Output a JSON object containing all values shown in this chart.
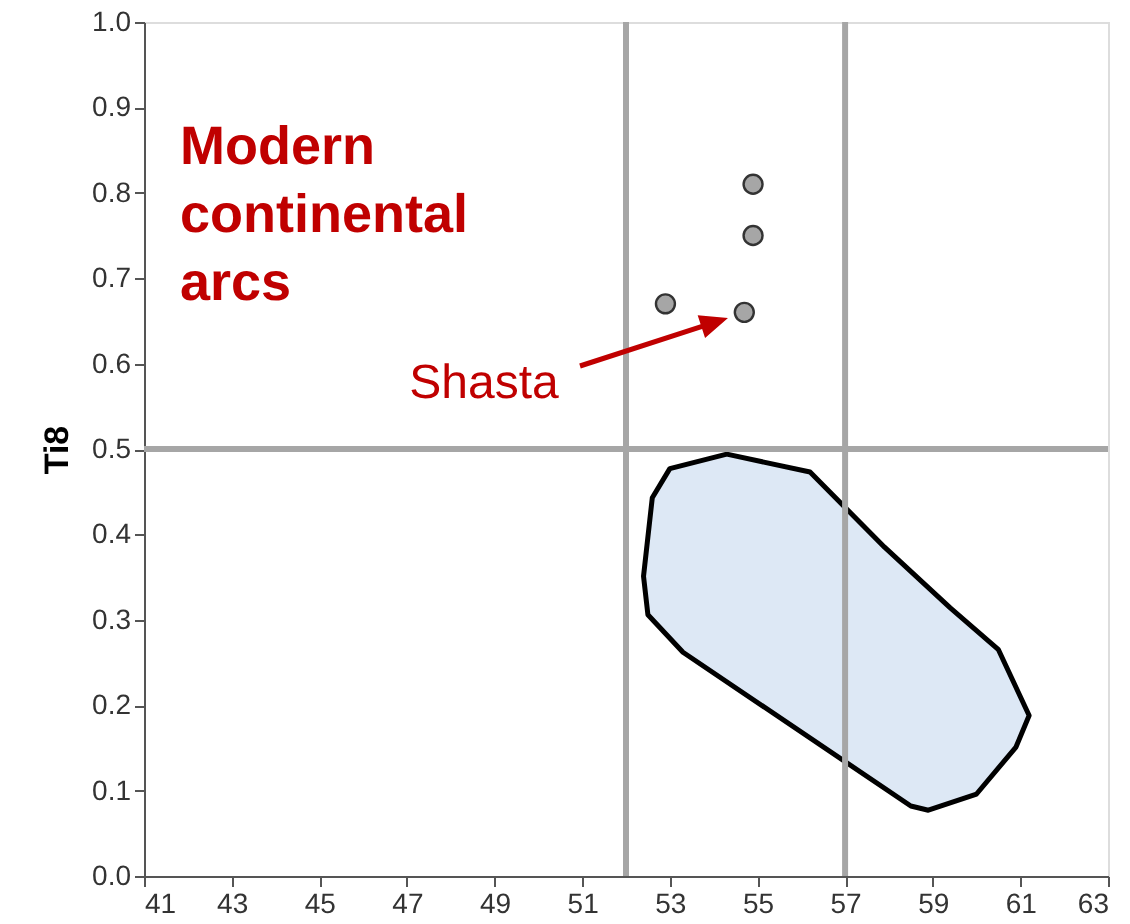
{
  "chart_data": {
    "type": "scatter",
    "ylabel": "Ti8",
    "xlim": [
      41,
      63
    ],
    "xticks": [
      41,
      43,
      45,
      47,
      49,
      51,
      53,
      55,
      57,
      59,
      61,
      63
    ],
    "ylim": [
      0,
      1
    ],
    "yticks": [
      {
        "value": 0,
        "label": "0.0"
      },
      0.1,
      0.2,
      0.3,
      0.4,
      0.5,
      0.6,
      0.7,
      0.8,
      0.9,
      {
        "value": 1,
        "label": "1.0"
      }
    ],
    "grid": false,
    "series": [
      {
        "marker": "circle",
        "color": "#a6a6a6",
        "x": [
          52.9,
          54.7,
          54.9,
          54.9
        ],
        "values": [
          0.67,
          0.66,
          0.75,
          0.81
        ]
      }
    ],
    "ref_lines": [
      {
        "axis": "x",
        "value": 52,
        "color": "#a6a6a6"
      },
      {
        "axis": "x",
        "value": 57,
        "color": "#a6a6a6"
      },
      {
        "axis": "y",
        "value": 0.5,
        "color": "#a6a6a6"
      }
    ],
    "annotations": [
      "Modern continental arcs",
      "Shasta"
    ]
  }
}
